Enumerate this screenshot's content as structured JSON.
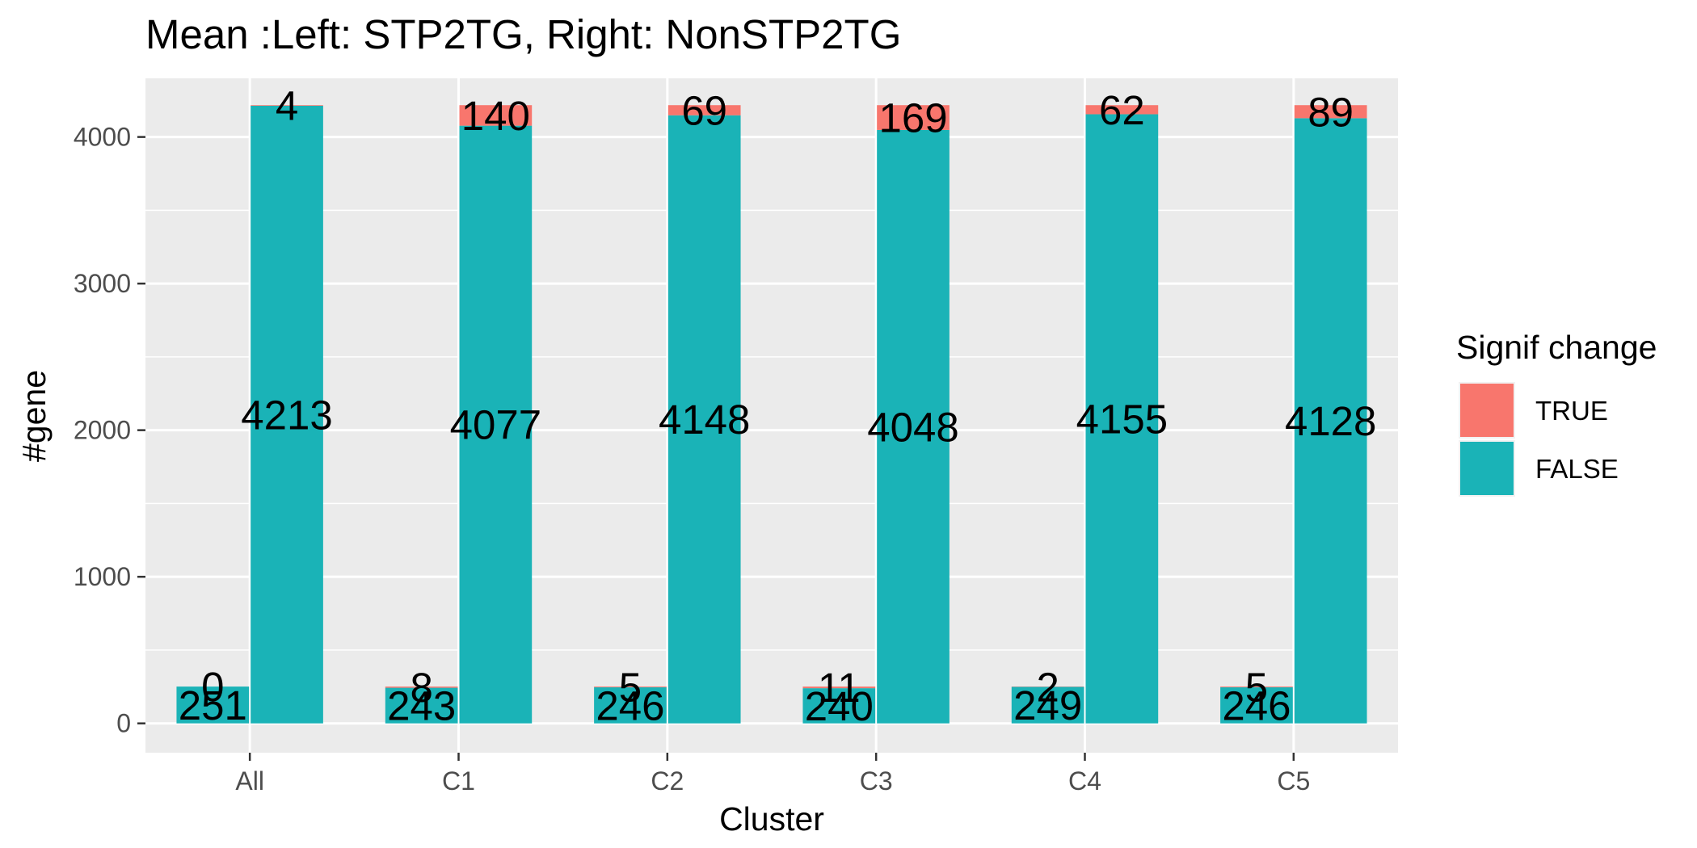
{
  "chart_data": {
    "type": "bar",
    "title": "Mean  :Left: STP2TG, Right: NonSTP2TG",
    "xlabel": "Cluster",
    "ylabel": "#gene",
    "categories": [
      "All",
      "C1",
      "C2",
      "C3",
      "C4",
      "C5"
    ],
    "y_ticks": [
      0,
      1000,
      2000,
      3000,
      4000
    ],
    "ylim": [
      -200,
      4400
    ],
    "grid": true,
    "groups": [
      "STP2TG",
      "NonSTP2TG"
    ],
    "stack_order": [
      "FALSE",
      "TRUE"
    ],
    "series": [
      {
        "name": "TRUE",
        "group": "STP2TG",
        "values": [
          0,
          8,
          5,
          11,
          2,
          5
        ]
      },
      {
        "name": "FALSE",
        "group": "STP2TG",
        "values": [
          251,
          243,
          246,
          240,
          249,
          246
        ]
      },
      {
        "name": "TRUE",
        "group": "NonSTP2TG",
        "values": [
          4,
          140,
          69,
          169,
          62,
          89
        ]
      },
      {
        "name": "FALSE",
        "group": "NonSTP2TG",
        "values": [
          4213,
          4077,
          4148,
          4048,
          4155,
          4128
        ]
      }
    ],
    "legend": {
      "title": "Signif change",
      "position": "right",
      "entries": [
        {
          "label": "TRUE",
          "color": "#F8766D"
        },
        {
          "label": "FALSE",
          "color": "#00BFC4"
        }
      ]
    },
    "colors": {
      "TRUE": "#F8766D",
      "FALSE": "#1AB3B7",
      "panel": "#EBEBEB",
      "grid": "#FFFFFF"
    }
  }
}
